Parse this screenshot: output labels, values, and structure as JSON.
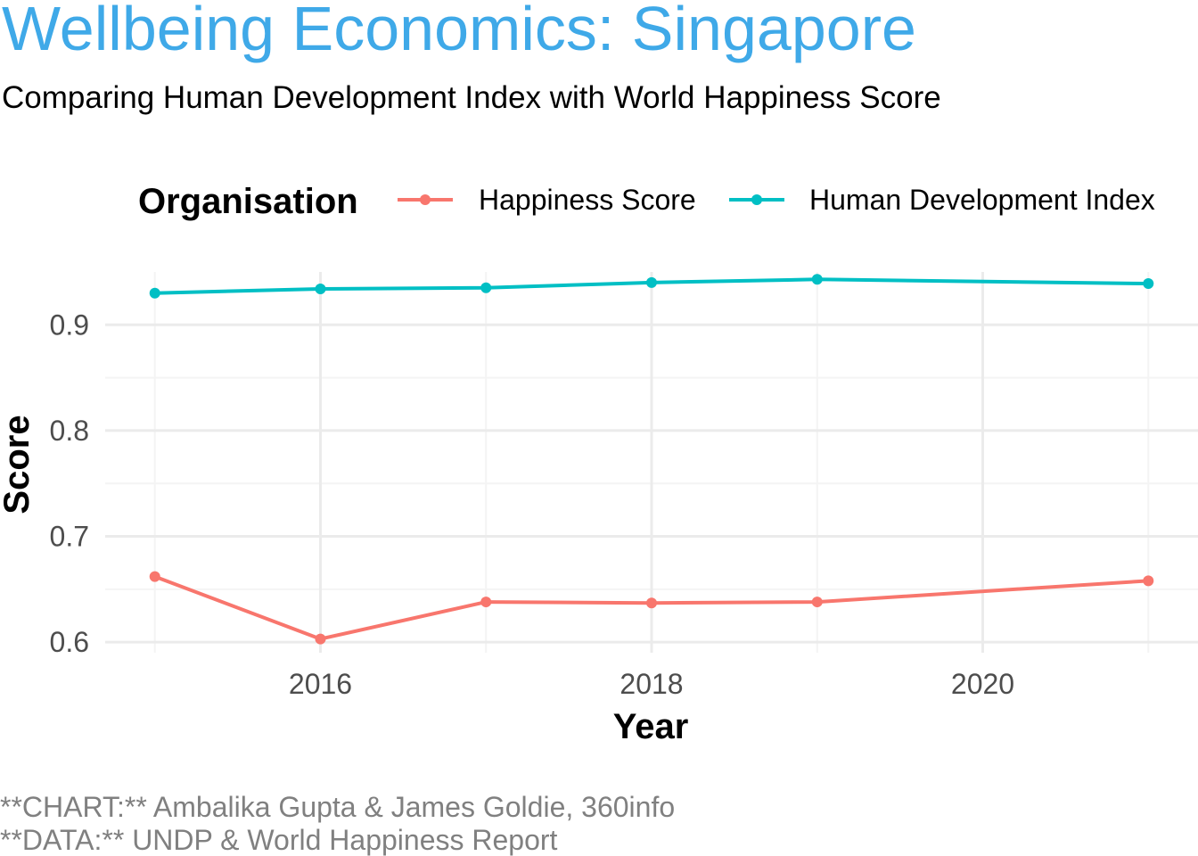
{
  "chart_data": {
    "type": "line",
    "title": "Wellbeing Economics: Singapore",
    "subtitle": "Comparing Human Development Index with World Happiness Score",
    "xlabel": "Year",
    "ylabel": "Score",
    "xlim": [
      2014.7,
      2021.3
    ],
    "ylim": [
      0.59,
      0.95
    ],
    "x_ticks": [
      2016,
      2018,
      2020
    ],
    "y_ticks": [
      0.6,
      0.7,
      0.8,
      0.9
    ],
    "grid": true,
    "legend": {
      "title": "Organisation",
      "placement": "top"
    },
    "x": [
      2015,
      2016,
      2017,
      2018,
      2019,
      2021
    ],
    "series": [
      {
        "name": "Happiness Score",
        "color": "#F8766D",
        "values": [
          0.662,
          0.603,
          0.638,
          0.637,
          0.638,
          0.658
        ]
      },
      {
        "name": "Human Development Index",
        "color": "#00BFC4",
        "values": [
          0.93,
          0.934,
          0.935,
          0.94,
          0.943,
          0.939
        ]
      }
    ],
    "caption": [
      "**CHART:** Ambalika Gupta & James Goldie, 360info",
      "**DATA:** UNDP & World Happiness Report"
    ]
  },
  "colors": {
    "title": "#3FA9E8",
    "subtitle": "#000000",
    "axis_title": "#000000",
    "tick_label": "#4D4D4D",
    "caption": "#808080",
    "grid_major": "#EBEBEB",
    "grid_minor": "#F4F4F4"
  }
}
